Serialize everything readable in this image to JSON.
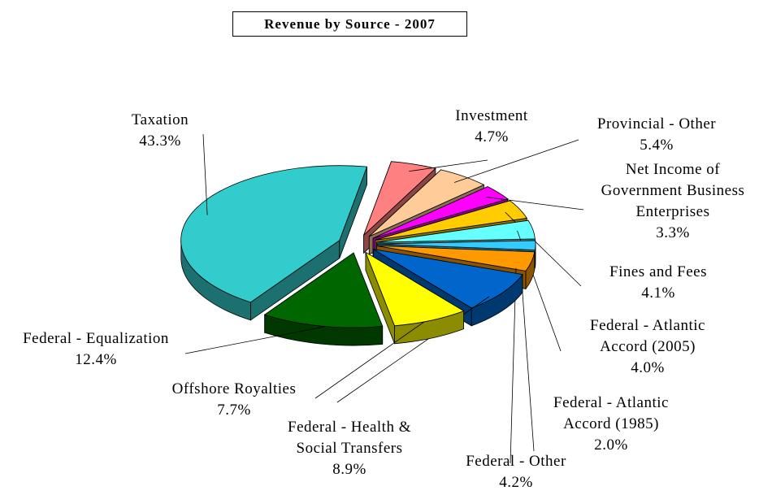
{
  "chart_data": {
    "type": "pie",
    "title": "Revenue by Source - 2007",
    "categories": [
      "Taxation",
      "Investment",
      "Provincial - Other",
      "Net Income of Government Business Enterprises",
      "Fines and Fees",
      "Federal - Atlantic Accord (2005)",
      "Federal - Atlantic Accord (1985)",
      "Federal - Other",
      "Federal - Health & Social Transfers",
      "Offshore Royalties",
      "Federal - Equalization"
    ],
    "values": [
      43.3,
      4.7,
      5.4,
      3.3,
      4.1,
      4.0,
      2.0,
      4.2,
      8.9,
      7.7,
      12.4
    ],
    "value_labels": [
      "43.3%",
      "4.7%",
      "5.4%",
      "3.3%",
      "4.1%",
      "4.0%",
      "2.0%",
      "4.2%",
      "8.9%",
      "7.7%",
      "12.4%"
    ],
    "colors": [
      "#33CCCC",
      "#FF8080",
      "#FFCC99",
      "#FF00FF",
      "#FFCC00",
      "#66FFFF",
      "#33CCFF",
      "#FF9900",
      "#0066CC",
      "#FFFF00",
      "#006600"
    ]
  }
}
